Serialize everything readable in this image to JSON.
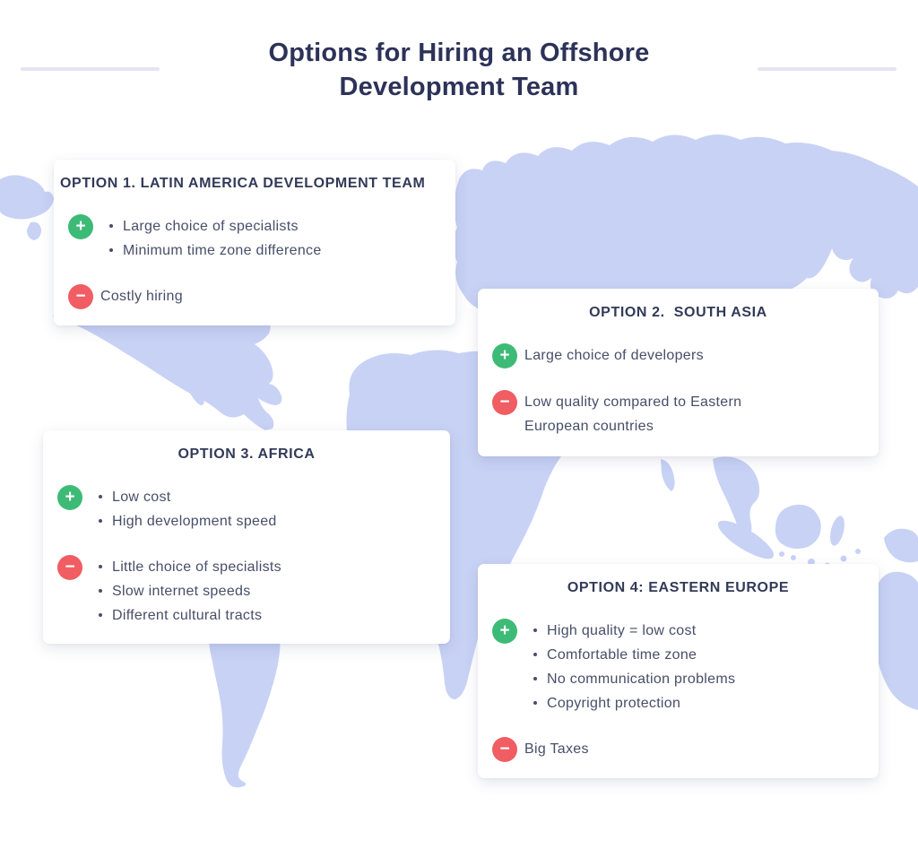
{
  "title": {
    "line1": "Options for Hiring an Offshore",
    "line2": "Development Team"
  },
  "colors": {
    "page_bg": "#ffffff",
    "map": "#c8d2f5",
    "title": "#2d3259",
    "card_bg": "#ffffff",
    "header": "#323a58",
    "body": "#474e68",
    "plus": "#3dbb76",
    "minus": "#f05d63",
    "rule": "#e3e5f0",
    "icon_glyph": "#ffffff"
  },
  "icons": {
    "plus_glyph": "+",
    "minus_glyph": "−"
  },
  "cards": [
    {
      "name": "option-1-latin-america-card",
      "title": "OPTION 1. LATIN AMERICA DEVELOPMENT TEAM",
      "pros": {
        "bulleted": true,
        "items": [
          "Large choice of specialists",
          "Minimum time zone difference"
        ]
      },
      "cons": {
        "bulleted": false,
        "items": [
          "Costly hiring"
        ]
      }
    },
    {
      "name": "option-2-south-asia-card",
      "title": "OPTION 2.  SOUTH ASIA",
      "pros": {
        "bulleted": false,
        "items": [
          "Large choice of developers"
        ]
      },
      "cons": {
        "bulleted": false,
        "items": [
          "Low quality compared to Eastern European countries"
        ]
      }
    },
    {
      "name": "option-3-africa-card",
      "title": "OPTION 3. AFRICA",
      "pros": {
        "bulleted": true,
        "items": [
          "Low cost",
          "High development speed"
        ]
      },
      "cons": {
        "bulleted": true,
        "items": [
          "Little choice of specialists",
          "Slow internet speeds",
          "Different cultural tracts"
        ]
      }
    },
    {
      "name": "option-4-eastern-europe-card",
      "title": "OPTION 4: EASTERN EUROPE",
      "pros": {
        "bulleted": true,
        "items": [
          "High quality = low cost",
          "Comfortable time zone",
          "No communication problems",
          "Copyright protection"
        ]
      },
      "cons": {
        "bulleted": false,
        "items": [
          "Big Taxes"
        ]
      }
    }
  ]
}
